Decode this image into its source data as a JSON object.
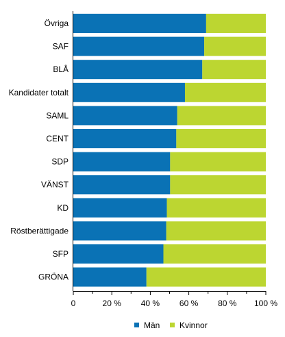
{
  "chart_data": {
    "type": "bar",
    "orientation": "horizontal",
    "stacked": true,
    "categories": [
      "Övriga",
      "SAF",
      "BLÅ",
      "Kandidater totalt",
      "SAML",
      "CENT",
      "SDP",
      "VÄNST",
      "KD",
      "Röstberättigade",
      "SFP",
      "GRÖNA"
    ],
    "series": [
      {
        "name": "Män",
        "color": "#0a72b5",
        "values": [
          69,
          68,
          67,
          58,
          54,
          53.5,
          50.3,
          50.3,
          48.6,
          48.3,
          46.8,
          38
        ]
      },
      {
        "name": "Kvinnor",
        "color": "#bcd631",
        "values": [
          31,
          32,
          33,
          42,
          46,
          46.5,
          49.7,
          49.7,
          51.4,
          51.7,
          53.2,
          62
        ]
      }
    ],
    "x_ticks": [
      "0",
      "20 %",
      "40 %",
      "60 %",
      "80 %",
      "100 %"
    ],
    "xlim": [
      0,
      100
    ],
    "legend_position": "bottom",
    "grid": false
  }
}
